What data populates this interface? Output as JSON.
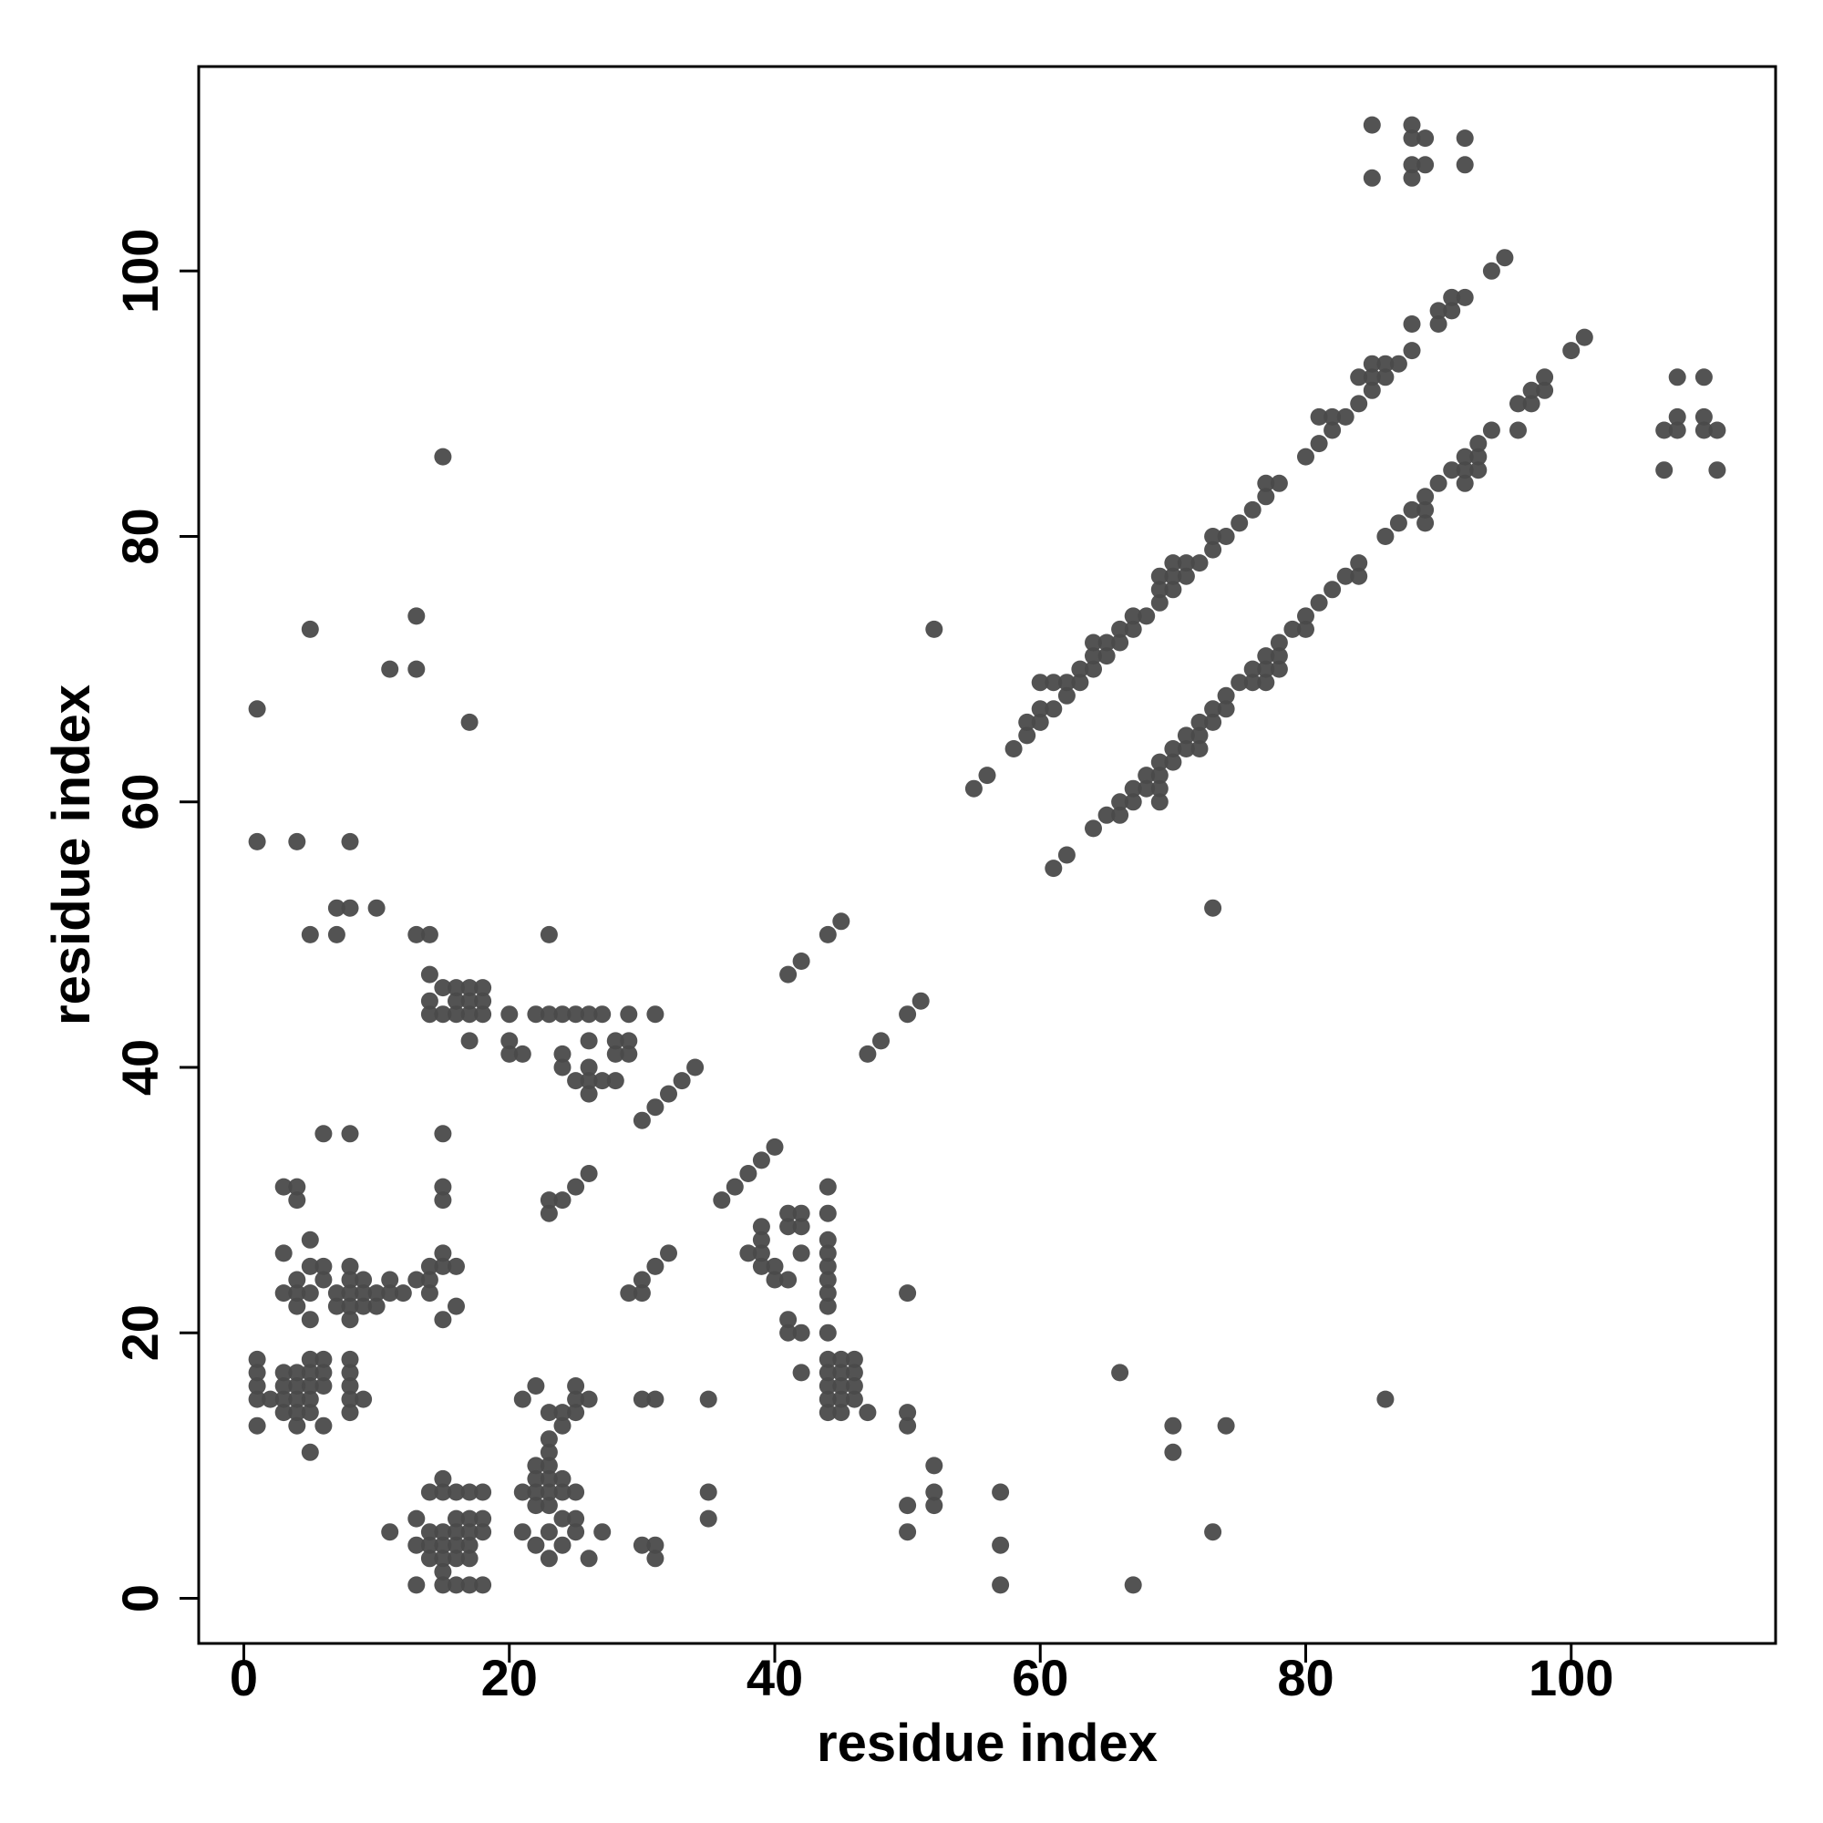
{
  "chart_data": {
    "type": "scatter",
    "title": "",
    "xlabel": "residue index",
    "ylabel": "residue index",
    "xlim": [
      -3.4,
      115.4
    ],
    "ylim": [
      -3.4,
      115.4
    ],
    "x_ticks": [
      0,
      20,
      40,
      60,
      80,
      100
    ],
    "y_ticks": [
      0,
      20,
      40,
      60,
      80,
      100
    ],
    "grid": false,
    "legend": "none",
    "point_color": "#4a4a4a",
    "points": [
      [
        1,
        67
      ],
      [
        5,
        73
      ],
      [
        11,
        70
      ],
      [
        13,
        74
      ],
      [
        13,
        70
      ],
      [
        17,
        66
      ],
      [
        15,
        86
      ],
      [
        1,
        57
      ],
      [
        4,
        57
      ],
      [
        8,
        57
      ],
      [
        5,
        50
      ],
      [
        7,
        50
      ],
      [
        7,
        52
      ],
      [
        8,
        52
      ],
      [
        10,
        52
      ],
      [
        13,
        50
      ],
      [
        14,
        50
      ],
      [
        23,
        50
      ],
      [
        14,
        47
      ],
      [
        14,
        45
      ],
      [
        14,
        44
      ],
      [
        15,
        46
      ],
      [
        15,
        44
      ],
      [
        16,
        46
      ],
      [
        16,
        45
      ],
      [
        16,
        44
      ],
      [
        17,
        46
      ],
      [
        17,
        45
      ],
      [
        17,
        44
      ],
      [
        17,
        42
      ],
      [
        18,
        46
      ],
      [
        18,
        45
      ],
      [
        18,
        44
      ],
      [
        20,
        44
      ],
      [
        20,
        42
      ],
      [
        20,
        41
      ],
      [
        21,
        41
      ],
      [
        22,
        44
      ],
      [
        23,
        44
      ],
      [
        24,
        44
      ],
      [
        24,
        41
      ],
      [
        24,
        40
      ],
      [
        25,
        44
      ],
      [
        25,
        39
      ],
      [
        26,
        44
      ],
      [
        26,
        42
      ],
      [
        26,
        40
      ],
      [
        26,
        39
      ],
      [
        26,
        38
      ],
      [
        27,
        44
      ],
      [
        27,
        39
      ],
      [
        28,
        42
      ],
      [
        28,
        41
      ],
      [
        28,
        39
      ],
      [
        29,
        44
      ],
      [
        29,
        42
      ],
      [
        29,
        41
      ],
      [
        31,
        44
      ],
      [
        30,
        36
      ],
      [
        31,
        37
      ],
      [
        32,
        38
      ],
      [
        33,
        39
      ],
      [
        34,
        40
      ],
      [
        6,
        35
      ],
      [
        8,
        35
      ],
      [
        15,
        35
      ],
      [
        3,
        31
      ],
      [
        4,
        31
      ],
      [
        4,
        30
      ],
      [
        15,
        31
      ],
      [
        15,
        30
      ],
      [
        23,
        30
      ],
      [
        23,
        29
      ],
      [
        24,
        30
      ],
      [
        25,
        31
      ],
      [
        26,
        32
      ],
      [
        3,
        26
      ],
      [
        5,
        27
      ],
      [
        5,
        25
      ],
      [
        6,
        25
      ],
      [
        6,
        24
      ],
      [
        3,
        23
      ],
      [
        4,
        23
      ],
      [
        4,
        24
      ],
      [
        4,
        22
      ],
      [
        5,
        23
      ],
      [
        5,
        21
      ],
      [
        7,
        23
      ],
      [
        7,
        22
      ],
      [
        8,
        25
      ],
      [
        8,
        24
      ],
      [
        8,
        23
      ],
      [
        8,
        22
      ],
      [
        8,
        21
      ],
      [
        9,
        24
      ],
      [
        9,
        23
      ],
      [
        9,
        22
      ],
      [
        10,
        23
      ],
      [
        10,
        22
      ],
      [
        11,
        24
      ],
      [
        11,
        23
      ],
      [
        12,
        23
      ],
      [
        13,
        24
      ],
      [
        14,
        25
      ],
      [
        14,
        24
      ],
      [
        14,
        23
      ],
      [
        15,
        26
      ],
      [
        15,
        25
      ],
      [
        15,
        21
      ],
      [
        16,
        25
      ],
      [
        16,
        22
      ],
      [
        29,
        23
      ],
      [
        30,
        24
      ],
      [
        30,
        23
      ],
      [
        31,
        25
      ],
      [
        32,
        26
      ],
      [
        36,
        30
      ],
      [
        37,
        31
      ],
      [
        38,
        32
      ],
      [
        39,
        33
      ],
      [
        40,
        34
      ],
      [
        38,
        26
      ],
      [
        39,
        28
      ],
      [
        39,
        27
      ],
      [
        39,
        26
      ],
      [
        39,
        25
      ],
      [
        40,
        25
      ],
      [
        40,
        24
      ],
      [
        41,
        29
      ],
      [
        41,
        28
      ],
      [
        41,
        24
      ],
      [
        41,
        21
      ],
      [
        41,
        20
      ],
      [
        42,
        29
      ],
      [
        42,
        28
      ],
      [
        42,
        26
      ],
      [
        42,
        20
      ],
      [
        42,
        17
      ],
      [
        44,
        31
      ],
      [
        44,
        29
      ],
      [
        44,
        27
      ],
      [
        44,
        26
      ],
      [
        44,
        25
      ],
      [
        44,
        24
      ],
      [
        44,
        23
      ],
      [
        44,
        22
      ],
      [
        44,
        20
      ],
      [
        44,
        18
      ],
      [
        44,
        17
      ],
      [
        44,
        16
      ],
      [
        44,
        15
      ],
      [
        44,
        14
      ],
      [
        45,
        18
      ],
      [
        45,
        17
      ],
      [
        45,
        16
      ],
      [
        45,
        15
      ],
      [
        45,
        14
      ],
      [
        46,
        18
      ],
      [
        46,
        17
      ],
      [
        46,
        16
      ],
      [
        46,
        15
      ],
      [
        47,
        14
      ],
      [
        50,
        23
      ],
      [
        1,
        18
      ],
      [
        1,
        17
      ],
      [
        1,
        16
      ],
      [
        1,
        15
      ],
      [
        1,
        13
      ],
      [
        2,
        15
      ],
      [
        3,
        17
      ],
      [
        3,
        16
      ],
      [
        3,
        15
      ],
      [
        3,
        14
      ],
      [
        4,
        17
      ],
      [
        4,
        16
      ],
      [
        4,
        15
      ],
      [
        4,
        14
      ],
      [
        4,
        13
      ],
      [
        5,
        18
      ],
      [
        5,
        17
      ],
      [
        5,
        16
      ],
      [
        5,
        15
      ],
      [
        5,
        14
      ],
      [
        5,
        11
      ],
      [
        6,
        18
      ],
      [
        6,
        17
      ],
      [
        6,
        16
      ],
      [
        6,
        13
      ],
      [
        8,
        18
      ],
      [
        8,
        17
      ],
      [
        8,
        16
      ],
      [
        8,
        15
      ],
      [
        8,
        14
      ],
      [
        9,
        15
      ],
      [
        21,
        15
      ],
      [
        22,
        16
      ],
      [
        23,
        14
      ],
      [
        24,
        14
      ],
      [
        24,
        13
      ],
      [
        25,
        16
      ],
      [
        25,
        15
      ],
      [
        25,
        14
      ],
      [
        26,
        15
      ],
      [
        30,
        15
      ],
      [
        31,
        15
      ],
      [
        35,
        15
      ],
      [
        35,
        8
      ],
      [
        35,
        6
      ],
      [
        11,
        5
      ],
      [
        13,
        6
      ],
      [
        13,
        4
      ],
      [
        13,
        1
      ],
      [
        14,
        8
      ],
      [
        14,
        5
      ],
      [
        14,
        4
      ],
      [
        14,
        3
      ],
      [
        15,
        9
      ],
      [
        15,
        8
      ],
      [
        15,
        5
      ],
      [
        15,
        4
      ],
      [
        15,
        3
      ],
      [
        15,
        2
      ],
      [
        15,
        1
      ],
      [
        16,
        8
      ],
      [
        16,
        6
      ],
      [
        16,
        5
      ],
      [
        16,
        4
      ],
      [
        16,
        3
      ],
      [
        16,
        1
      ],
      [
        17,
        8
      ],
      [
        17,
        6
      ],
      [
        17,
        5
      ],
      [
        17,
        4
      ],
      [
        17,
        3
      ],
      [
        17,
        1
      ],
      [
        18,
        8
      ],
      [
        18,
        6
      ],
      [
        18,
        5
      ],
      [
        18,
        1
      ],
      [
        21,
        8
      ],
      [
        21,
        5
      ],
      [
        22,
        10
      ],
      [
        22,
        9
      ],
      [
        22,
        8
      ],
      [
        22,
        7
      ],
      [
        22,
        4
      ],
      [
        23,
        12
      ],
      [
        23,
        11
      ],
      [
        23,
        10
      ],
      [
        23,
        9
      ],
      [
        23,
        8
      ],
      [
        23,
        7
      ],
      [
        23,
        5
      ],
      [
        23,
        3
      ],
      [
        24,
        9
      ],
      [
        24,
        8
      ],
      [
        24,
        6
      ],
      [
        24,
        4
      ],
      [
        25,
        8
      ],
      [
        25,
        6
      ],
      [
        25,
        5
      ],
      [
        26,
        3
      ],
      [
        27,
        5
      ],
      [
        30,
        4
      ],
      [
        31,
        4
      ],
      [
        31,
        3
      ],
      [
        50,
        14
      ],
      [
        50,
        13
      ],
      [
        50,
        7
      ],
      [
        50,
        5
      ],
      [
        52,
        10
      ],
      [
        52,
        8
      ],
      [
        52,
        7
      ],
      [
        57,
        8
      ],
      [
        57,
        4
      ],
      [
        57,
        1
      ],
      [
        67,
        1
      ],
      [
        66,
        17
      ],
      [
        70,
        13
      ],
      [
        70,
        11
      ],
      [
        73,
        5
      ],
      [
        74,
        13
      ],
      [
        86,
        15
      ],
      [
        41,
        47
      ],
      [
        42,
        48
      ],
      [
        44,
        50
      ],
      [
        45,
        51
      ],
      [
        47,
        41
      ],
      [
        48,
        42
      ],
      [
        50,
        44
      ],
      [
        51,
        45
      ],
      [
        52,
        73
      ],
      [
        73,
        52
      ],
      [
        55,
        61
      ],
      [
        56,
        62
      ],
      [
        58,
        64
      ],
      [
        59,
        65
      ],
      [
        59,
        66
      ],
      [
        60,
        66
      ],
      [
        60,
        67
      ],
      [
        60,
        69
      ],
      [
        61,
        67
      ],
      [
        61,
        69
      ],
      [
        62,
        68
      ],
      [
        62,
        69
      ],
      [
        63,
        69
      ],
      [
        63,
        70
      ],
      [
        64,
        70
      ],
      [
        64,
        71
      ],
      [
        64,
        72
      ],
      [
        65,
        71
      ],
      [
        65,
        72
      ],
      [
        66,
        72
      ],
      [
        66,
        73
      ],
      [
        67,
        73
      ],
      [
        67,
        74
      ],
      [
        68,
        74
      ],
      [
        69,
        75
      ],
      [
        69,
        76
      ],
      [
        69,
        77
      ],
      [
        70,
        76
      ],
      [
        70,
        77
      ],
      [
        70,
        78
      ],
      [
        71,
        77
      ],
      [
        71,
        78
      ],
      [
        72,
        78
      ],
      [
        73,
        79
      ],
      [
        73,
        80
      ],
      [
        74,
        80
      ],
      [
        75,
        81
      ],
      [
        76,
        82
      ],
      [
        77,
        83
      ],
      [
        77,
        84
      ],
      [
        78,
        84
      ],
      [
        80,
        86
      ],
      [
        81,
        87
      ],
      [
        81,
        89
      ],
      [
        82,
        88
      ],
      [
        82,
        89
      ],
      [
        83,
        89
      ],
      [
        84,
        90
      ],
      [
        84,
        92
      ],
      [
        85,
        91
      ],
      [
        85,
        92
      ],
      [
        85,
        93
      ],
      [
        86,
        92
      ],
      [
        86,
        93
      ],
      [
        87,
        93
      ],
      [
        88,
        94
      ],
      [
        88,
        96
      ],
      [
        90,
        96
      ],
      [
        90,
        97
      ],
      [
        91,
        97
      ],
      [
        91,
        98
      ],
      [
        92,
        98
      ],
      [
        94,
        100
      ],
      [
        95,
        101
      ],
      [
        61,
        55
      ],
      [
        62,
        56
      ],
      [
        64,
        58
      ],
      [
        65,
        59
      ],
      [
        66,
        59
      ],
      [
        66,
        60
      ],
      [
        67,
        60
      ],
      [
        67,
        61
      ],
      [
        68,
        61
      ],
      [
        68,
        62
      ],
      [
        69,
        60
      ],
      [
        69,
        61
      ],
      [
        69,
        62
      ],
      [
        69,
        63
      ],
      [
        70,
        63
      ],
      [
        70,
        64
      ],
      [
        71,
        64
      ],
      [
        71,
        65
      ],
      [
        72,
        64
      ],
      [
        72,
        65
      ],
      [
        72,
        66
      ],
      [
        73,
        66
      ],
      [
        73,
        67
      ],
      [
        74,
        67
      ],
      [
        74,
        68
      ],
      [
        75,
        69
      ],
      [
        76,
        69
      ],
      [
        76,
        70
      ],
      [
        77,
        69
      ],
      [
        77,
        70
      ],
      [
        77,
        71
      ],
      [
        78,
        70
      ],
      [
        78,
        71
      ],
      [
        78,
        72
      ],
      [
        79,
        73
      ],
      [
        80,
        73
      ],
      [
        80,
        74
      ],
      [
        81,
        75
      ],
      [
        82,
        76
      ],
      [
        83,
        77
      ],
      [
        84,
        77
      ],
      [
        84,
        78
      ],
      [
        86,
        80
      ],
      [
        87,
        81
      ],
      [
        88,
        82
      ],
      [
        89,
        81
      ],
      [
        89,
        82
      ],
      [
        89,
        83
      ],
      [
        90,
        84
      ],
      [
        91,
        85
      ],
      [
        92,
        84
      ],
      [
        92,
        85
      ],
      [
        92,
        86
      ],
      [
        93,
        85
      ],
      [
        93,
        86
      ],
      [
        93,
        87
      ],
      [
        94,
        88
      ],
      [
        96,
        88
      ],
      [
        96,
        90
      ],
      [
        97,
        90
      ],
      [
        97,
        91
      ],
      [
        98,
        91
      ],
      [
        98,
        92
      ],
      [
        100,
        94
      ],
      [
        101,
        95
      ],
      [
        85,
        111
      ],
      [
        85,
        107
      ],
      [
        88,
        111
      ],
      [
        88,
        110
      ],
      [
        88,
        108
      ],
      [
        88,
        107
      ],
      [
        89,
        110
      ],
      [
        89,
        108
      ],
      [
        92,
        110
      ],
      [
        92,
        108
      ],
      [
        107,
        88
      ],
      [
        107,
        85
      ],
      [
        108,
        92
      ],
      [
        108,
        89
      ],
      [
        108,
        88
      ],
      [
        110,
        92
      ],
      [
        110,
        89
      ],
      [
        110,
        88
      ],
      [
        111,
        88
      ],
      [
        111,
        85
      ]
    ]
  }
}
